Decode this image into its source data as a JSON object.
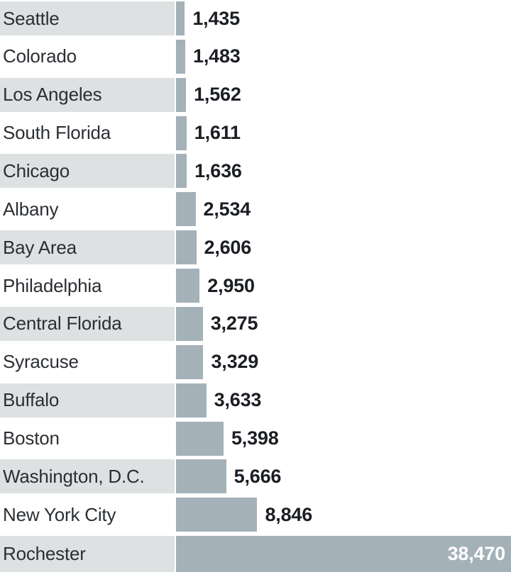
{
  "chart_data": {
    "type": "bar",
    "orientation": "horizontal",
    "categories": [
      "Seattle",
      "Colorado",
      "Los Angeles",
      "South Florida",
      "Chicago",
      "Albany",
      "Bay Area",
      "Philadelphia",
      "Central Florida",
      "Syracuse",
      "Buffalo",
      "Boston",
      "Washington, D.C.",
      "New York City",
      "Rochester"
    ],
    "values": [
      1435,
      1483,
      1562,
      1611,
      1636,
      2534,
      2606,
      2950,
      3275,
      3329,
      3633,
      5398,
      5666,
      8846,
      38470
    ],
    "value_labels": [
      "1,435",
      "1,483",
      "1,562",
      "1,611",
      "1,636",
      "2,534",
      "2,606",
      "2,950",
      "3,275",
      "3,329",
      "3,633",
      "5,398",
      "5,666",
      "8,846",
      "38,470"
    ],
    "title": "",
    "xlabel": "",
    "ylabel": "",
    "legend_position": "none",
    "grid": false,
    "value_label_inside_for_max_bar": true,
    "zebra_striped_label_rows": "odd rows (1st, 3rd, 5th, ...)",
    "colors": {
      "bar": "#a4b1b9",
      "zebra_band": "#dde1e1",
      "label_text": "#2b2f33",
      "value_text": "#1b1e23",
      "value_text_inside_bar": "#ffffff",
      "background": "#ffffff"
    }
  }
}
